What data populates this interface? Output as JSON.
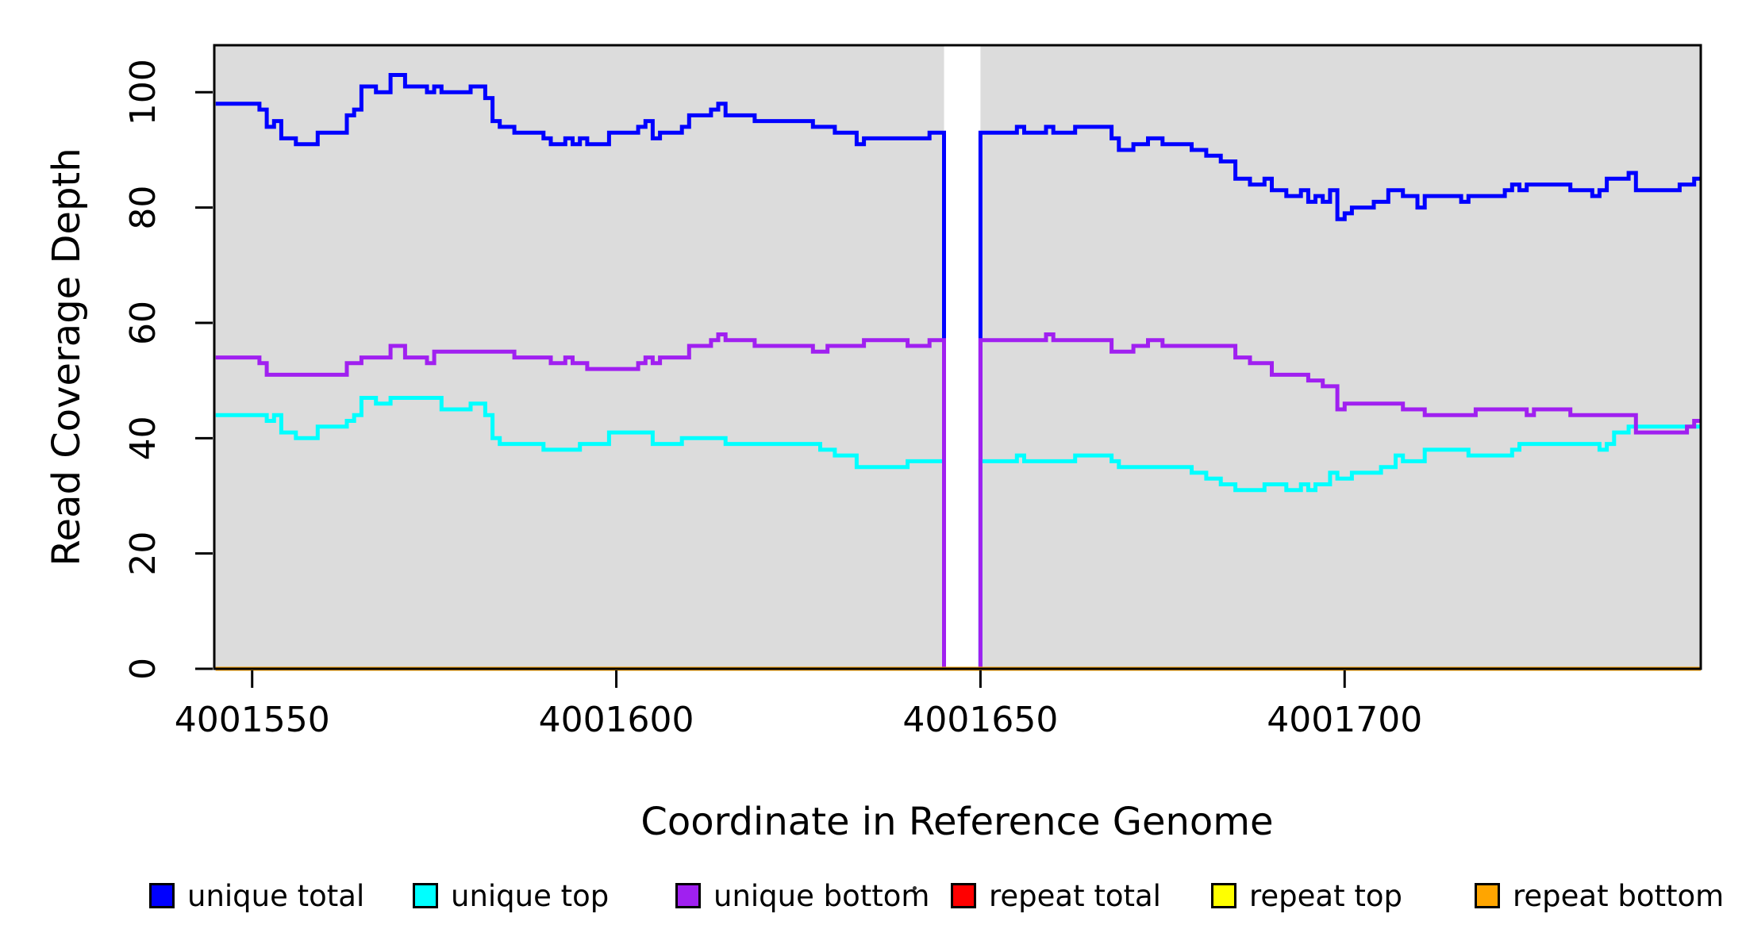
{
  "chart_data": {
    "type": "line",
    "subtype": "step",
    "title": "",
    "xlabel": "Coordinate in Reference Genome",
    "ylabel": "Read Coverage Depth",
    "xlim": [
      4001544.8,
      4001748.9
    ],
    "ylim": [
      0,
      108
    ],
    "x_ticks": [
      4001550,
      4001600,
      4001650,
      4001700
    ],
    "x_tick_labels": [
      "4001550",
      "4001600",
      "4001650",
      "4001700"
    ],
    "y_ticks": [
      0,
      20,
      40,
      60,
      80,
      100
    ],
    "y_tick_labels": [
      "0",
      "20",
      "40",
      "60",
      "80",
      "100"
    ],
    "grid": false,
    "plot_bg_color": "#DCDCDC",
    "gap_region": {
      "x_start": 4001645,
      "x_end": 4001650,
      "fill": "#FFFFFF",
      "note": "zero-coverage gap; unique curves drop to 0"
    },
    "legend_position": "bottom",
    "series": [
      {
        "name": "unique total",
        "color": "#0000FF",
        "steps": [
          [
            4001545,
            98
          ],
          [
            4001551,
            97
          ],
          [
            4001552,
            94
          ],
          [
            4001553,
            95
          ],
          [
            4001554,
            92
          ],
          [
            4001556,
            91
          ],
          [
            4001559,
            93
          ],
          [
            4001563,
            96
          ],
          [
            4001564,
            97
          ],
          [
            4001565,
            101
          ],
          [
            4001567,
            100
          ],
          [
            4001569,
            103
          ],
          [
            4001571,
            101
          ],
          [
            4001574,
            100
          ],
          [
            4001575,
            101
          ],
          [
            4001576,
            100
          ],
          [
            4001580,
            101
          ],
          [
            4001582,
            99
          ],
          [
            4001583,
            95
          ],
          [
            4001584,
            94
          ],
          [
            4001586,
            93
          ],
          [
            4001590,
            92
          ],
          [
            4001591,
            91
          ],
          [
            4001593,
            92
          ],
          [
            4001594,
            91
          ],
          [
            4001595,
            92
          ],
          [
            4001596,
            91
          ],
          [
            4001599,
            93
          ],
          [
            4001603,
            94
          ],
          [
            4001604,
            95
          ],
          [
            4001605,
            92
          ],
          [
            4001606,
            93
          ],
          [
            4001609,
            94
          ],
          [
            4001610,
            96
          ],
          [
            4001613,
            97
          ],
          [
            4001614,
            98
          ],
          [
            4001615,
            96
          ],
          [
            4001619,
            95
          ],
          [
            4001627,
            94
          ],
          [
            4001630,
            93
          ],
          [
            4001633,
            91
          ],
          [
            4001634,
            92
          ],
          [
            4001643,
            93
          ],
          [
            4001645,
            0
          ],
          [
            4001650,
            93
          ],
          [
            4001655,
            94
          ],
          [
            4001656,
            93
          ],
          [
            4001659,
            94
          ],
          [
            4001660,
            93
          ],
          [
            4001663,
            94
          ],
          [
            4001668,
            92
          ],
          [
            4001669,
            90
          ],
          [
            4001671,
            91
          ],
          [
            4001673,
            92
          ],
          [
            4001675,
            91
          ],
          [
            4001679,
            90
          ],
          [
            4001681,
            89
          ],
          [
            4001683,
            88
          ],
          [
            4001685,
            85
          ],
          [
            4001687,
            84
          ],
          [
            4001689,
            85
          ],
          [
            4001690,
            83
          ],
          [
            4001692,
            82
          ],
          [
            4001694,
            83
          ],
          [
            4001695,
            81
          ],
          [
            4001696,
            82
          ],
          [
            4001697,
            81
          ],
          [
            4001698,
            83
          ],
          [
            4001699,
            78
          ],
          [
            4001700,
            79
          ],
          [
            4001701,
            80
          ],
          [
            4001704,
            81
          ],
          [
            4001706,
            83
          ],
          [
            4001708,
            82
          ],
          [
            4001710,
            80
          ],
          [
            4001711,
            82
          ],
          [
            4001716,
            81
          ],
          [
            4001717,
            82
          ],
          [
            4001722,
            83
          ],
          [
            4001723,
            84
          ],
          [
            4001724,
            83
          ],
          [
            4001725,
            84
          ],
          [
            4001731,
            83
          ],
          [
            4001734,
            82
          ],
          [
            4001735,
            83
          ],
          [
            4001736,
            85
          ],
          [
            4001739,
            86
          ],
          [
            4001740,
            83
          ],
          [
            4001746,
            84
          ],
          [
            4001748,
            85
          ]
        ]
      },
      {
        "name": "unique top",
        "color": "#00FFFF",
        "steps": [
          [
            4001545,
            44
          ],
          [
            4001552,
            43
          ],
          [
            4001553,
            44
          ],
          [
            4001554,
            41
          ],
          [
            4001556,
            40
          ],
          [
            4001559,
            42
          ],
          [
            4001563,
            43
          ],
          [
            4001564,
            44
          ],
          [
            4001565,
            47
          ],
          [
            4001567,
            46
          ],
          [
            4001569,
            47
          ],
          [
            4001576,
            45
          ],
          [
            4001580,
            46
          ],
          [
            4001582,
            44
          ],
          [
            4001583,
            40
          ],
          [
            4001584,
            39
          ],
          [
            4001590,
            38
          ],
          [
            4001595,
            39
          ],
          [
            4001599,
            41
          ],
          [
            4001605,
            39
          ],
          [
            4001609,
            40
          ],
          [
            4001615,
            39
          ],
          [
            4001628,
            38
          ],
          [
            4001630,
            37
          ],
          [
            4001633,
            35
          ],
          [
            4001640,
            36
          ],
          [
            4001645,
            0
          ],
          [
            4001650,
            36
          ],
          [
            4001655,
            37
          ],
          [
            4001656,
            36
          ],
          [
            4001663,
            37
          ],
          [
            4001668,
            36
          ],
          [
            4001669,
            35
          ],
          [
            4001679,
            34
          ],
          [
            4001681,
            33
          ],
          [
            4001683,
            32
          ],
          [
            4001685,
            31
          ],
          [
            4001689,
            32
          ],
          [
            4001692,
            31
          ],
          [
            4001694,
            32
          ],
          [
            4001695,
            31
          ],
          [
            4001696,
            32
          ],
          [
            4001698,
            34
          ],
          [
            4001699,
            33
          ],
          [
            4001701,
            34
          ],
          [
            4001705,
            35
          ],
          [
            4001707,
            37
          ],
          [
            4001708,
            36
          ],
          [
            4001711,
            38
          ],
          [
            4001717,
            37
          ],
          [
            4001723,
            38
          ],
          [
            4001724,
            39
          ],
          [
            4001735,
            38
          ],
          [
            4001736,
            39
          ],
          [
            4001737,
            41
          ],
          [
            4001739,
            42
          ]
        ]
      },
      {
        "name": "unique bottom",
        "color": "#A020F0",
        "steps": [
          [
            4001545,
            54
          ],
          [
            4001551,
            53
          ],
          [
            4001552,
            51
          ],
          [
            4001563,
            53
          ],
          [
            4001565,
            54
          ],
          [
            4001569,
            56
          ],
          [
            4001571,
            54
          ],
          [
            4001574,
            53
          ],
          [
            4001575,
            55
          ],
          [
            4001586,
            54
          ],
          [
            4001591,
            53
          ],
          [
            4001593,
            54
          ],
          [
            4001594,
            53
          ],
          [
            4001596,
            52
          ],
          [
            4001603,
            53
          ],
          [
            4001604,
            54
          ],
          [
            4001605,
            53
          ],
          [
            4001606,
            54
          ],
          [
            4001610,
            56
          ],
          [
            4001613,
            57
          ],
          [
            4001614,
            58
          ],
          [
            4001615,
            57
          ],
          [
            4001619,
            56
          ],
          [
            4001627,
            55
          ],
          [
            4001629,
            56
          ],
          [
            4001634,
            57
          ],
          [
            4001640,
            56
          ],
          [
            4001643,
            57
          ],
          [
            4001645,
            0
          ],
          [
            4001650,
            57
          ],
          [
            4001659,
            58
          ],
          [
            4001660,
            57
          ],
          [
            4001668,
            55
          ],
          [
            4001671,
            56
          ],
          [
            4001673,
            57
          ],
          [
            4001675,
            56
          ],
          [
            4001685,
            54
          ],
          [
            4001687,
            53
          ],
          [
            4001690,
            51
          ],
          [
            4001695,
            50
          ],
          [
            4001697,
            49
          ],
          [
            4001699,
            45
          ],
          [
            4001700,
            46
          ],
          [
            4001708,
            45
          ],
          [
            4001711,
            44
          ],
          [
            4001718,
            45
          ],
          [
            4001725,
            44
          ],
          [
            4001726,
            45
          ],
          [
            4001731,
            44
          ],
          [
            4001740,
            41
          ],
          [
            4001747,
            42
          ],
          [
            4001748,
            43
          ]
        ]
      },
      {
        "name": "repeat total",
        "color": "#FF0000",
        "steps": [
          [
            4001545,
            0
          ]
        ]
      },
      {
        "name": "repeat top",
        "color": "#FFFF00",
        "steps": [
          [
            4001545,
            0
          ]
        ]
      },
      {
        "name": "repeat bottom",
        "color": "#FFA500",
        "steps": [
          [
            4001545,
            0
          ]
        ]
      }
    ],
    "legend": [
      {
        "label": "unique total",
        "color": "#0000FF"
      },
      {
        "label": "unique top",
        "color": "#00FFFF"
      },
      {
        "label": "unique bottom",
        "color": "#A020F0"
      },
      {
        "label": "repeat total",
        "color": "#FF0000"
      },
      {
        "label": "repeat top",
        "color": "#FFFF00"
      },
      {
        "label": "repeat bottom",
        "color": "#FFA500"
      }
    ]
  }
}
